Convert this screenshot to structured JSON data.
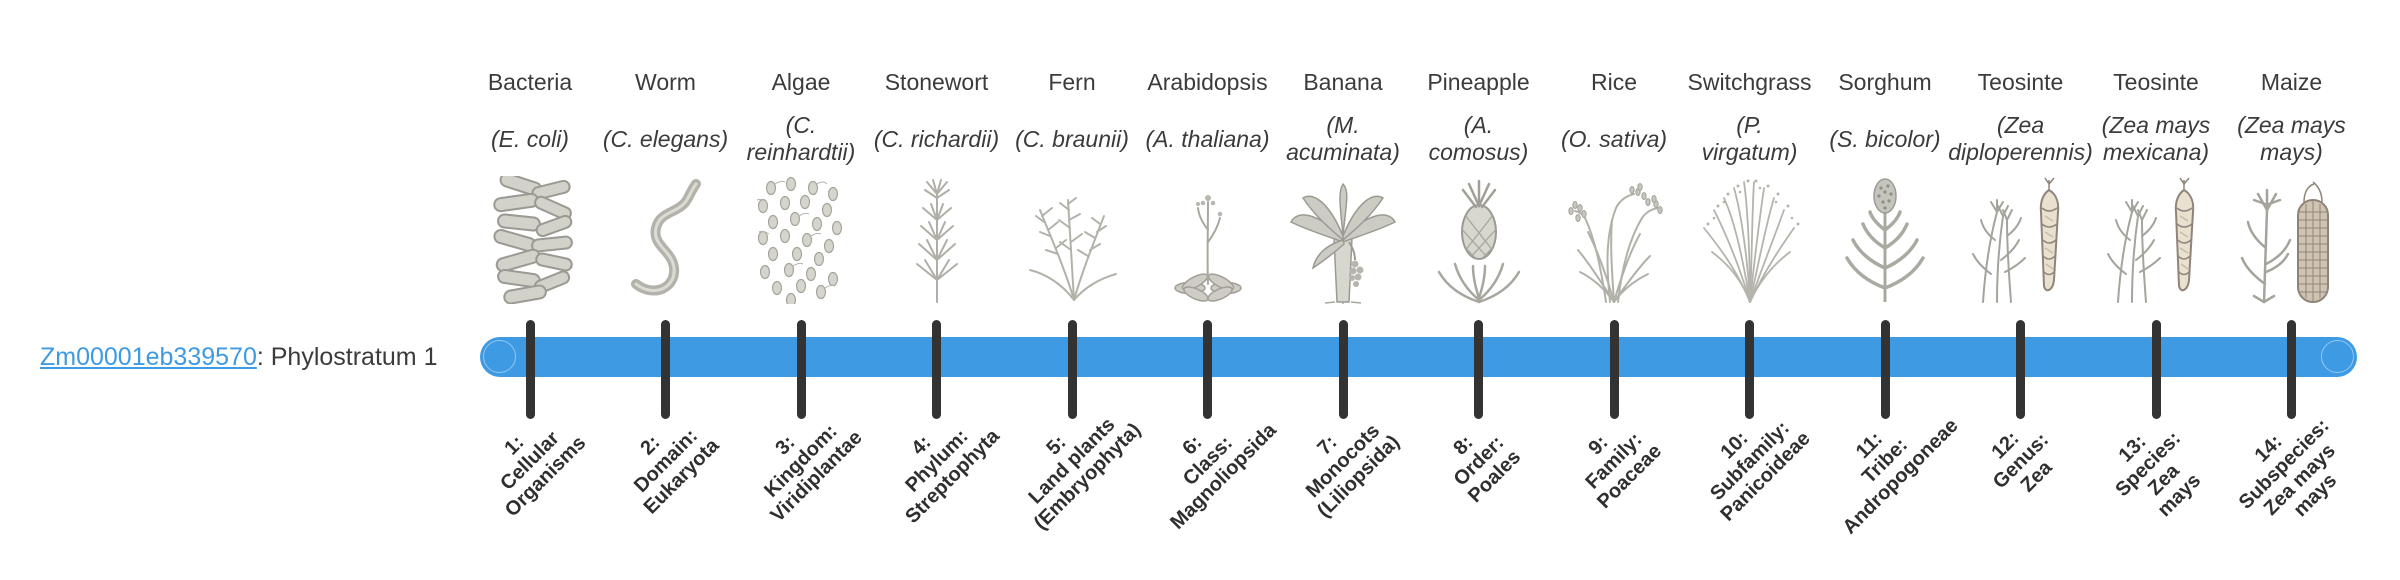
{
  "gene": {
    "id": "Zm00001eb339570",
    "suffix": ": Phylostratum 1"
  },
  "timeline": {
    "phylostratum_count": 14,
    "colors": {
      "bar_blue": "#3d9ae3",
      "link_blue": "#3d9ae3",
      "tick_dark": "#333333",
      "text_dark": "#3b3b3b"
    }
  },
  "phylostrata": [
    {
      "num": 1,
      "name": "Bacteria",
      "sci": "(E. coli)",
      "icon": "bacteria-icon",
      "tick_label": "1:\nCellular\nOrganisms"
    },
    {
      "num": 2,
      "name": "Worm",
      "sci": "(C. elegans)",
      "icon": "worm-icon",
      "tick_label": "2:\nDomain:\nEukaryota"
    },
    {
      "num": 3,
      "name": "Algae",
      "sci": "(C.\nreinhardtii)",
      "icon": "algae-icon",
      "tick_label": "3:\nKingdom:\nViridiplantae"
    },
    {
      "num": 4,
      "name": "Stonewort",
      "sci": "(C. richardii)",
      "icon": "stonewort-icon",
      "tick_label": "4:\nPhylum:\nStreptophyta"
    },
    {
      "num": 5,
      "name": "Fern",
      "sci": "(C. braunii)",
      "icon": "fern-icon",
      "tick_label": "5:\nLand plants\n(Embryophyta)"
    },
    {
      "num": 6,
      "name": "Arabidopsis",
      "sci": "(A. thaliana)",
      "icon": "arabidopsis-icon",
      "tick_label": "6:\nClass:\nMagnoliopsida"
    },
    {
      "num": 7,
      "name": "Banana",
      "sci": "(M.\nacuminata)",
      "icon": "banana-icon",
      "tick_label": "7:\nMonocots\n(Liliopsida)"
    },
    {
      "num": 8,
      "name": "Pineapple",
      "sci": "(A.\ncomosus)",
      "icon": "pineapple-icon",
      "tick_label": "8:\nOrder:\nPoales"
    },
    {
      "num": 9,
      "name": "Rice",
      "sci": "(O. sativa)",
      "icon": "rice-icon",
      "tick_label": "9:\nFamily:\nPoaceae"
    },
    {
      "num": 10,
      "name": "Switchgrass",
      "sci": "(P.\nvirgatum)",
      "icon": "switchgrass-icon",
      "tick_label": "10:\nSubfamily:\nPanicoideae"
    },
    {
      "num": 11,
      "name": "Sorghum",
      "sci": "(S. bicolor)",
      "icon": "sorghum-icon",
      "tick_label": "11:\nTribe:\nAndropogoneae"
    },
    {
      "num": 12,
      "name": "Teosinte",
      "sci": "(Zea\ndiploperennis)",
      "icon": "teosinte-icon",
      "tick_label": "12:\nGenus:\nZea"
    },
    {
      "num": 13,
      "name": "Teosinte",
      "sci": "(Zea mays\nmexicana)",
      "icon": "teosinte-icon",
      "tick_label": "13:\nSpecies:\nZea\nmays"
    },
    {
      "num": 14,
      "name": "Maize",
      "sci": "(Zea mays\nmays)",
      "icon": "maize-icon",
      "tick_label": "14:\nSubspecies:\nZea mays\nmays"
    }
  ]
}
